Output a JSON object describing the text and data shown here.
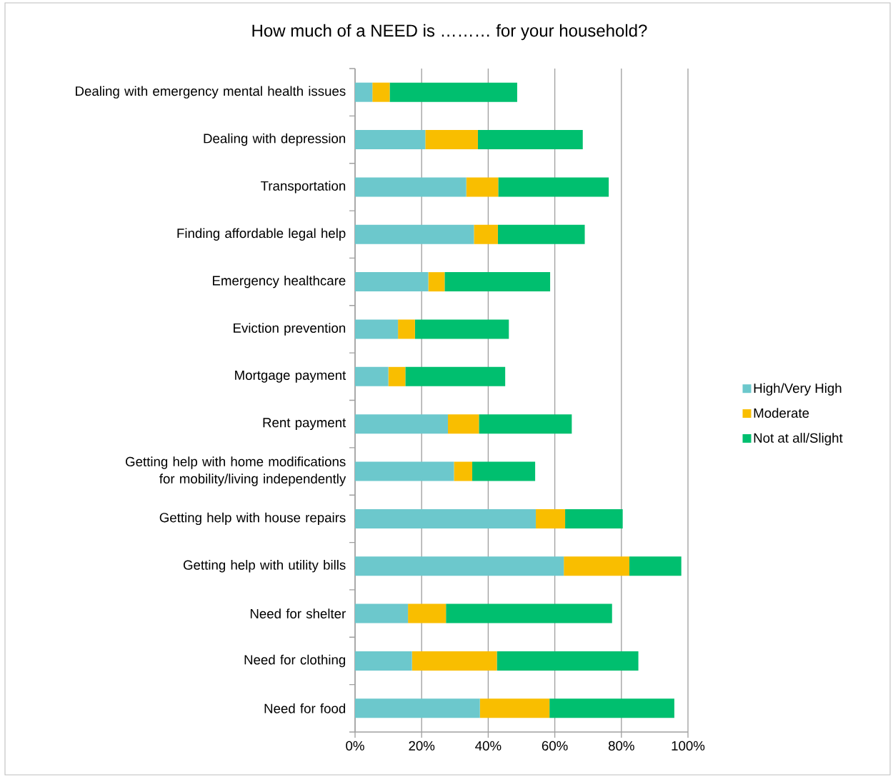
{
  "chart_data": {
    "type": "bar",
    "orientation": "horizontal",
    "stacked": true,
    "title": "How much of a NEED is ……… for your household?",
    "categories": [
      "Dealing with emergency mental health issues",
      "Dealing with depression",
      "Transportation",
      "Finding affordable legal help",
      "Emergency healthcare",
      "Eviction prevention",
      "Mortgage payment",
      "Rent payment",
      "Getting help with home modifications for mobility/living independently",
      "Getting help with house repairs",
      "Getting help with utility bills",
      "Need for shelter",
      "Need for clothing",
      "Need for food"
    ],
    "series": [
      {
        "name": "High/Very High",
        "color": "#6cc8cc",
        "values": [
          5.2,
          21.1,
          33.4,
          35.7,
          22.0,
          12.9,
          10.0,
          27.9,
          29.7,
          54.3,
          62.7,
          15.9,
          17.1,
          37.5
        ]
      },
      {
        "name": "Moderate",
        "color": "#f9be00",
        "values": [
          5.2,
          15.8,
          9.6,
          7.2,
          4.9,
          5.1,
          5.1,
          9.3,
          5.5,
          8.8,
          19.7,
          11.4,
          25.5,
          20.9
        ]
      },
      {
        "name": "Not at all/Slight",
        "color": "#00bf6f",
        "values": [
          38.3,
          31.5,
          33.2,
          26.1,
          31.7,
          28.2,
          30.0,
          27.9,
          18.9,
          17.3,
          15.6,
          49.9,
          42.5,
          37.5
        ]
      }
    ],
    "xlim": [
      0,
      100
    ],
    "xticks": [
      {
        "value": 0,
        "label": "0%"
      },
      {
        "value": 20,
        "label": "20%"
      },
      {
        "value": 40,
        "label": "40%"
      },
      {
        "value": 60,
        "label": "60%"
      },
      {
        "value": 80,
        "label": "80%"
      },
      {
        "value": 100,
        "label": "100%"
      }
    ],
    "grid": "x",
    "legend": "right"
  }
}
